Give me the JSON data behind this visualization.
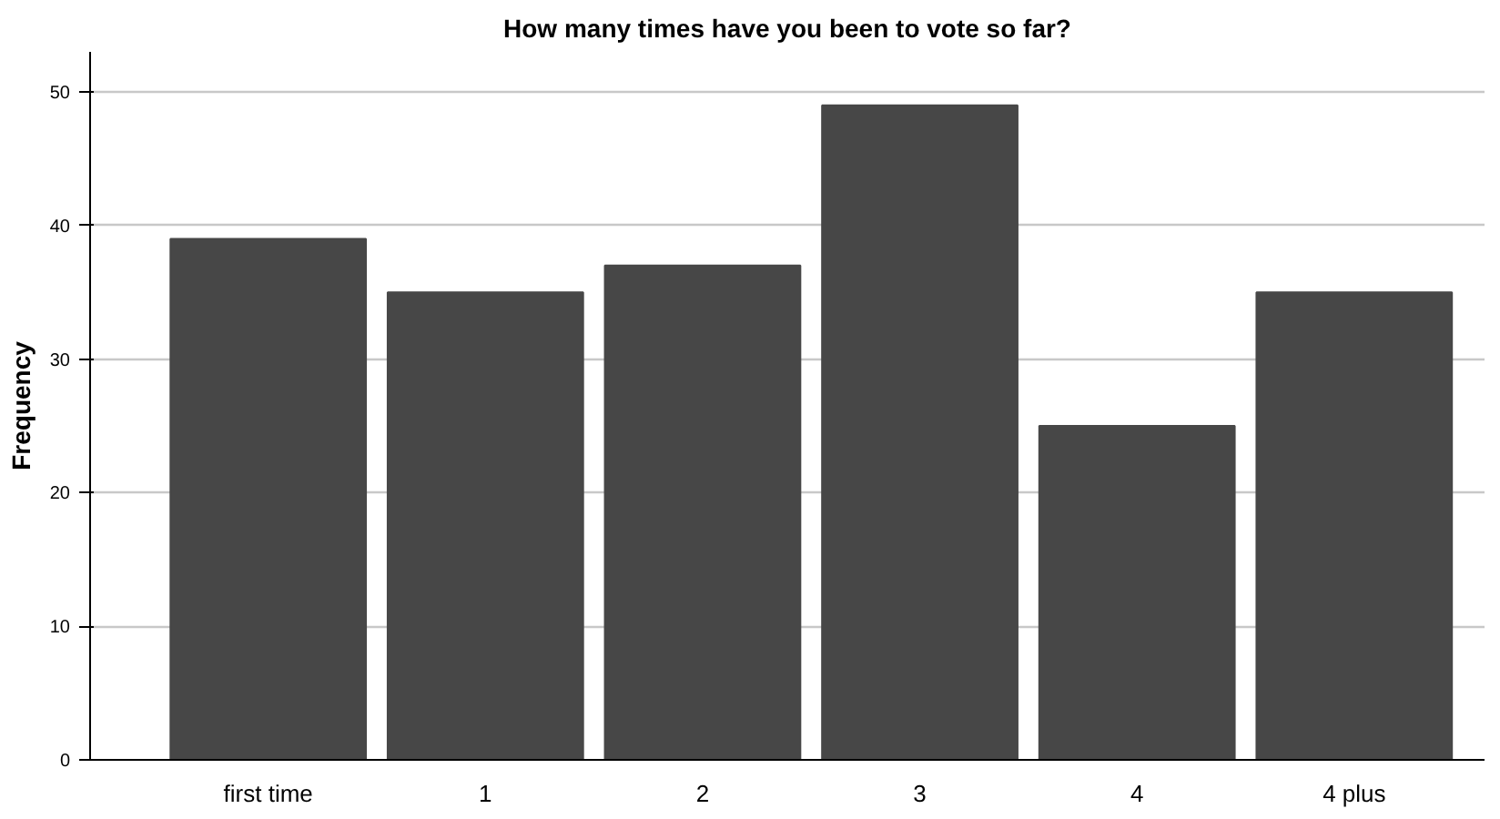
{
  "chart_data": {
    "type": "bar",
    "title": "How many times have you been to vote so far?",
    "ylabel": "Frequency",
    "categories": [
      "first time",
      "1",
      "2",
      "3",
      "4",
      "4 plus"
    ],
    "values": [
      39,
      35,
      37,
      49,
      25,
      35
    ],
    "color": "#474747",
    "ylim": [
      0,
      53
    ],
    "yticks": [
      0,
      10,
      20,
      30,
      40,
      50
    ],
    "grid": "y"
  }
}
